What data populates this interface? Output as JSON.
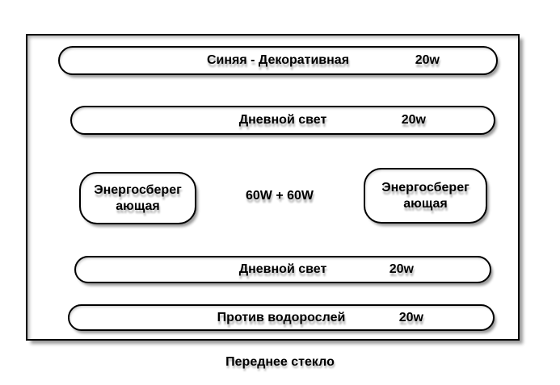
{
  "colors": {
    "outline": "#000000",
    "fill": "#ffffff",
    "shadow": "rgba(0,0,0,0.35)"
  },
  "diagram": {
    "caption": "Переднее стекло",
    "center_label": "60W + 60W",
    "tubes": [
      {
        "label": "Синяя - Декоративная",
        "power": "20w"
      },
      {
        "label": "Дневной свет",
        "power": "20w"
      },
      {
        "label": "Дневной свет",
        "power": "20w"
      },
      {
        "label": "Против водорослей",
        "power": "20w"
      }
    ],
    "bulbs": [
      {
        "line1": "Энергосберег",
        "line2": "ающая"
      },
      {
        "line1": "Энергосберег",
        "line2": "ающая"
      }
    ]
  }
}
